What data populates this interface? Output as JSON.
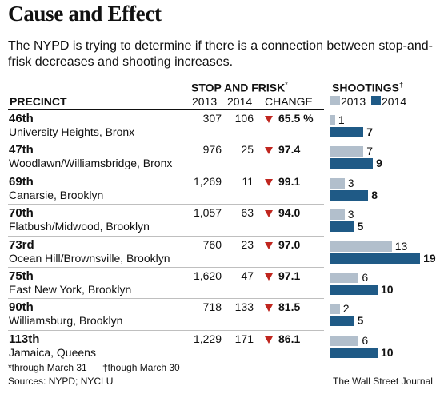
{
  "title": "Cause and Effect",
  "subtitle": "The NYPD is trying to determine if there is a connection between stop-and-frisk decreases and shooting increases.",
  "header": {
    "precinct": "PRECINCT",
    "stop_and_frisk": "STOP AND FRISK",
    "stop_and_frisk_mark": "*",
    "y2013": "2013",
    "y2014": "2014",
    "change": "CHANGE",
    "shootings": "SHOOTINGS",
    "shootings_mark": "†",
    "legend_2013": "2013",
    "legend_2014": "2014"
  },
  "colors": {
    "bar_2013": "#b2bfcc",
    "bar_2014": "#1f5a86",
    "down_arrow": "#c0261f"
  },
  "rows": [
    {
      "precinct": "46th",
      "area": "University Heights, Bronx",
      "sf2013": "307",
      "sf2014": "106",
      "change": "65.5 %",
      "shoot2013": 1,
      "shoot2014": 7
    },
    {
      "precinct": "47th",
      "area": "Woodlawn/Williamsbridge, Bronx",
      "sf2013": "976",
      "sf2014": "25",
      "change": "97.4",
      "shoot2013": 7,
      "shoot2014": 9
    },
    {
      "precinct": "69th",
      "area": "Canarsie, Brooklyn",
      "sf2013": "1,269",
      "sf2014": "11",
      "change": "99.1",
      "shoot2013": 3,
      "shoot2014": 8
    },
    {
      "precinct": "70th",
      "area": "Flatbush/Midwood, Brooklyn",
      "sf2013": "1,057",
      "sf2014": "63",
      "change": "94.0",
      "shoot2013": 3,
      "shoot2014": 5
    },
    {
      "precinct": "73rd",
      "area": "Ocean Hill/Brownsville, Brooklyn",
      "sf2013": "760",
      "sf2014": "23",
      "change": "97.0",
      "shoot2013": 13,
      "shoot2014": 19
    },
    {
      "precinct": "75th",
      "area": "East New York, Brooklyn",
      "sf2013": "1,620",
      "sf2014": "47",
      "change": "97.1",
      "shoot2013": 6,
      "shoot2014": 10
    },
    {
      "precinct": "90th",
      "area": "Williamsburg, Brooklyn",
      "sf2013": "718",
      "sf2014": "133",
      "change": "81.5",
      "shoot2013": 2,
      "shoot2014": 5
    },
    {
      "precinct": "113th",
      "area": "Jamaica, Queens",
      "sf2013": "1,229",
      "sf2014": "171",
      "change": "86.1",
      "shoot2013": 6,
      "shoot2014": 10
    }
  ],
  "chart_data": {
    "type": "bar",
    "categories": [
      "46th",
      "47th",
      "69th",
      "70th",
      "73rd",
      "75th",
      "90th",
      "113th"
    ],
    "series": [
      {
        "name": "2013",
        "values": [
          1,
          7,
          3,
          3,
          13,
          6,
          2,
          6
        ]
      },
      {
        "name": "2014",
        "values": [
          7,
          9,
          8,
          5,
          19,
          10,
          5,
          10
        ]
      }
    ],
    "title": "SHOOTINGS",
    "orientation": "horizontal",
    "legend": "top"
  },
  "footnotes": {
    "stop_note": "*through March 31",
    "shoot_note": "†though March 30",
    "sources": "Sources: NYPD; NYCLU",
    "credit": "The Wall Street Journal"
  }
}
